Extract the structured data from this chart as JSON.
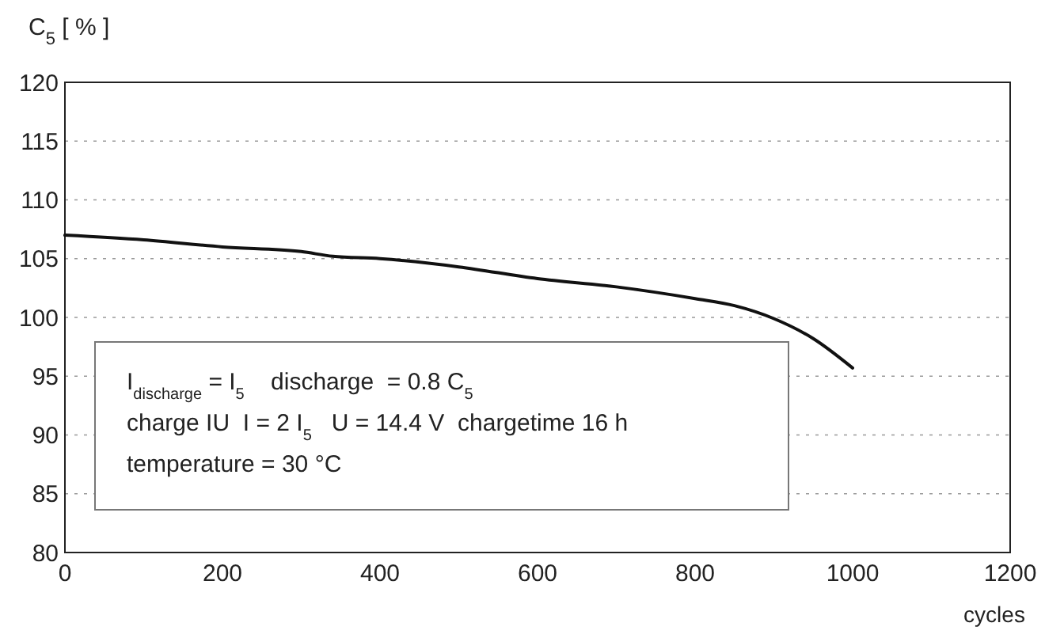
{
  "chart_data": {
    "type": "line",
    "ylabel": "C$_{5}$ [ % ]",
    "xlabel": "cycles",
    "x": [
      0,
      100,
      200,
      300,
      340,
      400,
      500,
      600,
      700,
      800,
      850,
      900,
      950,
      1000
    ],
    "series": [
      {
        "color": "#111111",
        "values": [
          107.0,
          106.6,
          106.0,
          105.6,
          105.2,
          105.0,
          104.3,
          103.3,
          102.6,
          101.6,
          101.0,
          99.9,
          98.2,
          95.7
        ]
      }
    ],
    "xlim": [
      0,
      1200
    ],
    "xticks": [
      0,
      200,
      400,
      600,
      800,
      1000,
      1200
    ],
    "ylim": [
      80,
      120
    ],
    "yticks": [
      80,
      85,
      90,
      95,
      100,
      105,
      110,
      115,
      120
    ],
    "grid": "y",
    "marker": "none",
    "line_style": "solid",
    "annotations": [
      "I$_{discharge}$ = I$_{5}$    discharge  = 0.8 C$_{5}$",
      "charge IU  I = 2 I$_{5}$   U = 14.4 V  chargetime 16 h",
      "temperature = 30 °C"
    ]
  }
}
